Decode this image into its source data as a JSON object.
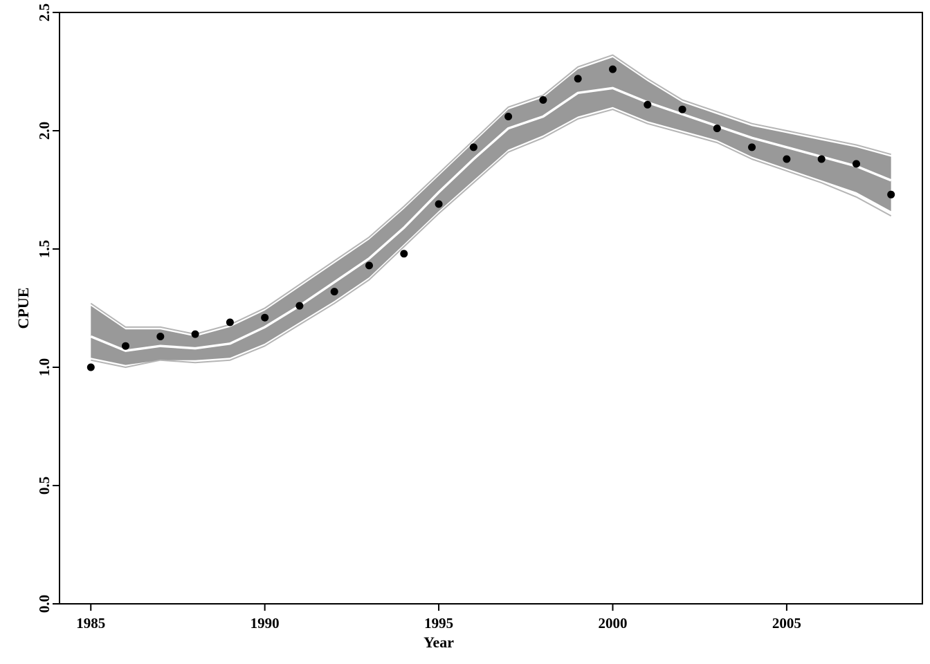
{
  "chart_data": {
    "type": "line",
    "xlabel": "Year",
    "ylabel": "CPUE",
    "xlim": [
      1984.1,
      2008.9
    ],
    "ylim": [
      0,
      2.5
    ],
    "x_ticks": [
      1985,
      1990,
      1995,
      2000,
      2005
    ],
    "y_ticks": [
      0.0,
      0.5,
      1.0,
      1.5,
      2.0,
      2.5
    ],
    "y_tick_labels": [
      "0.0",
      "0.5",
      "1.0",
      "1.5",
      "2.0",
      "2.5"
    ],
    "grid": false,
    "legend": "none",
    "colors": {
      "observed": "#000000",
      "band": "#999999",
      "median": "#ffffff",
      "envelope": "#b5b5b5",
      "axis": "#000000"
    },
    "years": [
      1985,
      1986,
      1987,
      1988,
      1989,
      1990,
      1991,
      1992,
      1993,
      1994,
      1995,
      1996,
      1997,
      1998,
      1999,
      2000,
      2001,
      2002,
      2003,
      2004,
      2005,
      2006,
      2007,
      2008
    ],
    "series": [
      {
        "role": "observed",
        "type": "scatter",
        "values": [
          1.0,
          1.09,
          1.13,
          1.14,
          1.19,
          1.21,
          1.26,
          1.32,
          1.43,
          1.48,
          1.69,
          1.93,
          2.06,
          2.13,
          2.22,
          2.26,
          2.11,
          2.09,
          2.01,
          1.93,
          1.88,
          1.88,
          1.86,
          1.73
        ]
      },
      {
        "role": "band_lower",
        "type": "area",
        "values": [
          1.04,
          1.01,
          1.03,
          1.03,
          1.04,
          1.1,
          1.19,
          1.28,
          1.38,
          1.52,
          1.66,
          1.79,
          1.92,
          1.98,
          2.06,
          2.1,
          2.04,
          2.0,
          1.96,
          1.89,
          1.84,
          1.79,
          1.74,
          1.66
        ]
      },
      {
        "role": "band_upper",
        "type": "area",
        "values": [
          1.26,
          1.16,
          1.16,
          1.13,
          1.17,
          1.24,
          1.34,
          1.44,
          1.54,
          1.67,
          1.81,
          1.95,
          2.09,
          2.14,
          2.26,
          2.31,
          2.21,
          2.12,
          2.07,
          2.02,
          1.99,
          1.96,
          1.93,
          1.89
        ]
      },
      {
        "role": "median",
        "type": "line",
        "values": [
          1.13,
          1.07,
          1.09,
          1.08,
          1.1,
          1.17,
          1.26,
          1.36,
          1.46,
          1.59,
          1.74,
          1.88,
          2.01,
          2.06,
          2.16,
          2.18,
          2.12,
          2.07,
          2.02,
          1.97,
          1.93,
          1.89,
          1.85,
          1.79
        ]
      },
      {
        "role": "envelope_lower",
        "type": "line",
        "values": [
          1.03,
          1.0,
          1.03,
          1.02,
          1.03,
          1.09,
          1.18,
          1.27,
          1.37,
          1.51,
          1.65,
          1.78,
          1.91,
          1.97,
          2.05,
          2.09,
          2.03,
          1.99,
          1.95,
          1.88,
          1.83,
          1.78,
          1.72,
          1.64
        ]
      },
      {
        "role": "envelope_upper",
        "type": "line",
        "values": [
          1.27,
          1.17,
          1.17,
          1.14,
          1.18,
          1.25,
          1.35,
          1.45,
          1.55,
          1.68,
          1.82,
          1.96,
          2.1,
          2.15,
          2.27,
          2.32,
          2.22,
          2.13,
          2.08,
          2.03,
          2.0,
          1.97,
          1.94,
          1.9
        ]
      }
    ]
  }
}
